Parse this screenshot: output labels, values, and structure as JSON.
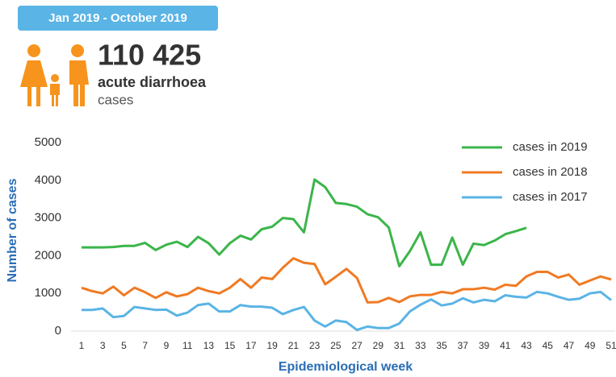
{
  "header": {
    "period": "Jan 2019 - October 2019",
    "headline": "110 425",
    "subject": "acute diarrhoea",
    "unit": "cases"
  },
  "chart_data": {
    "type": "line",
    "y_label": "Number of cases",
    "x_label": "Epidemiological week",
    "x": [
      1,
      2,
      3,
      4,
      5,
      6,
      7,
      8,
      9,
      10,
      11,
      12,
      13,
      14,
      15,
      16,
      17,
      18,
      19,
      20,
      21,
      22,
      23,
      24,
      25,
      26,
      27,
      28,
      29,
      30,
      31,
      32,
      33,
      34,
      35,
      36,
      37,
      38,
      39,
      40,
      41,
      42,
      43,
      44,
      45,
      46,
      47,
      48,
      49,
      50,
      51
    ],
    "xlim": [
      1,
      51
    ],
    "xticks": [
      1,
      3,
      5,
      7,
      9,
      11,
      13,
      15,
      17,
      19,
      21,
      23,
      25,
      27,
      29,
      31,
      33,
      35,
      37,
      39,
      41,
      43,
      45,
      47,
      49,
      51
    ],
    "ylim": [
      0,
      5000
    ],
    "yticks": [
      0,
      1000,
      2000,
      3000,
      4000,
      5000
    ],
    "legend": "upper right",
    "series": [
      {
        "name": "cases in 2019",
        "color": "#3bb54a",
        "values": [
          2220,
          2220,
          2220,
          2230,
          2260,
          2260,
          2340,
          2150,
          2290,
          2370,
          2230,
          2500,
          2330,
          2030,
          2330,
          2530,
          2430,
          2700,
          2770,
          3000,
          2970,
          2620,
          4020,
          3820,
          3400,
          3370,
          3300,
          3100,
          3020,
          2750,
          1720,
          2120,
          2620,
          1760,
          1760,
          2480,
          1760,
          2320,
          2280,
          2400,
          2570,
          2650,
          2740,
          null,
          null,
          null,
          null,
          null,
          null,
          null,
          null
        ]
      },
      {
        "name": "cases in 2018",
        "color": "#f07a23",
        "values": [
          1150,
          1060,
          1000,
          1180,
          950,
          1150,
          1030,
          880,
          1030,
          920,
          980,
          1150,
          1060,
          1000,
          1150,
          1380,
          1150,
          1420,
          1380,
          1680,
          1930,
          1810,
          1780,
          1240,
          1440,
          1650,
          1410,
          760,
          770,
          880,
          770,
          920,
          960,
          960,
          1040,
          1000,
          1110,
          1110,
          1150,
          1100,
          1230,
          1200,
          1450,
          1570,
          1570,
          1420,
          1500,
          1230,
          1340,
          1450,
          1370
        ]
      },
      {
        "name": "cases in 2017",
        "color": "#5ab4e5",
        "values": [
          560,
          560,
          600,
          370,
          400,
          640,
          600,
          560,
          570,
          410,
          490,
          690,
          730,
          520,
          520,
          690,
          650,
          650,
          620,
          450,
          560,
          640,
          280,
          120,
          280,
          240,
          30,
          120,
          80,
          80,
          200,
          520,
          700,
          840,
          680,
          730,
          870,
          760,
          830,
          790,
          950,
          910,
          890,
          1040,
          1000,
          910,
          830,
          860,
          1000,
          1040,
          820
        ]
      }
    ]
  }
}
